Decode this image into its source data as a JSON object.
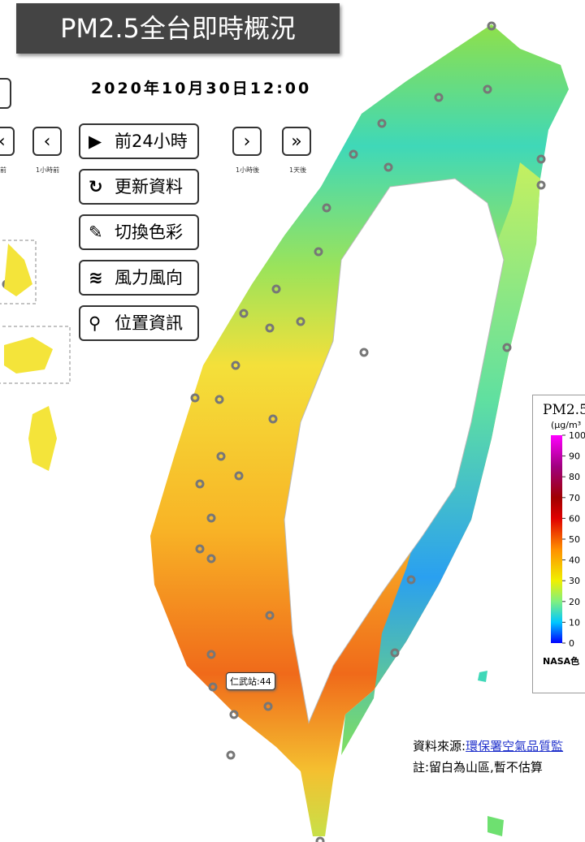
{
  "header": {
    "title": "PM2.5全台即時概況",
    "datetime": "2020年10月30日12:00"
  },
  "nav": {
    "labels": [
      "前",
      "1小時前",
      "1小時後",
      "1天後"
    ]
  },
  "menu": {
    "buttons": [
      "前24小時",
      "更新資料",
      "切換色彩",
      "風力風向",
      "位置資訊"
    ]
  },
  "station": {
    "label": "仁武站:44"
  },
  "legend": {
    "title": "PM2.5",
    "unit": "(μg/m³",
    "ticks": [
      0,
      10,
      20,
      30,
      40,
      50,
      60,
      70,
      80,
      90,
      100
    ],
    "footer": "NASA色"
  },
  "footer": {
    "source_prefix": "資料來源:",
    "source_link": "環保署空氣品質監",
    "note": "註:留白為山區,暫不估算"
  }
}
